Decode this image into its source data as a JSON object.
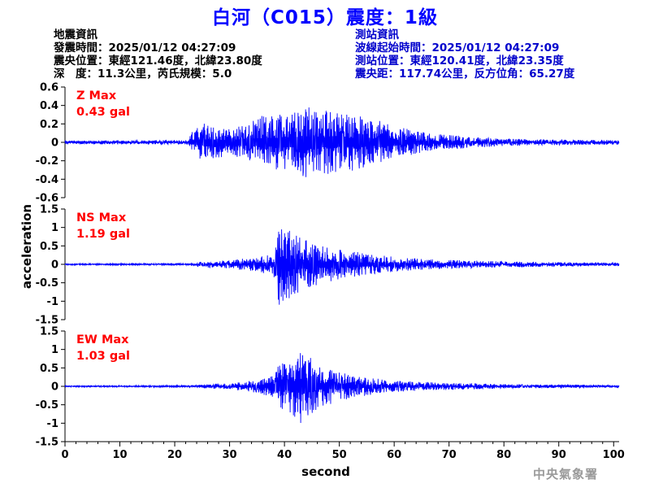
{
  "colors": {
    "title": "#0000ff",
    "trace": "#0000ff",
    "max_label": "#ff0000",
    "station_info": "#0000cc"
  },
  "title": "白河（C015）震度：1級",
  "event_info": {
    "heading": "地震資訊",
    "origin_time": "發震時間：2025/01/12 04:27:09",
    "epicenter": "震央位置：東經121.46度，北緯23.80度",
    "depth_magnitude": "深　度：11.3公里，芮氏規模：5.0"
  },
  "station_info": {
    "heading": "測站資訊",
    "waveform_start": "波線起始時間：2025/01/12 04:27:09",
    "location": "測站位置：東經120.41度，北緯23.35度",
    "distance_azimuth": "震央距：117.74公里，反方位角：65.27度"
  },
  "agency": "中央氣象署",
  "chart_data": {
    "type": "line",
    "xlabel": "second",
    "ylabel": "acceleration",
    "xlim": [
      0,
      101
    ],
    "xticks": [
      0,
      10,
      20,
      30,
      40,
      50,
      60,
      70,
      80,
      90,
      100
    ],
    "panels": [
      {
        "name": "Z",
        "max_label": "Z Max",
        "max_value": "0.43 gal",
        "ylim": [
          -0.6,
          0.6
        ],
        "yticks": [
          -0.6,
          -0.4,
          -0.2,
          0,
          0.2,
          0.4,
          0.6
        ],
        "envelope": [
          [
            0,
            0.02
          ],
          [
            22.5,
            0.025
          ],
          [
            23,
            0.12
          ],
          [
            25,
            0.22
          ],
          [
            27,
            0.18
          ],
          [
            30,
            0.15
          ],
          [
            33,
            0.2
          ],
          [
            36,
            0.3
          ],
          [
            40,
            0.3
          ],
          [
            44,
            0.43
          ],
          [
            47,
            0.35
          ],
          [
            50,
            0.33
          ],
          [
            54,
            0.3
          ],
          [
            58,
            0.22
          ],
          [
            62,
            0.15
          ],
          [
            66,
            0.1
          ],
          [
            72,
            0.07
          ],
          [
            80,
            0.04
          ],
          [
            90,
            0.03
          ],
          [
            101,
            0.025
          ]
        ]
      },
      {
        "name": "NS",
        "max_label": "NS Max",
        "max_value": "1.19 gal",
        "ylim": [
          -1.5,
          1.5
        ],
        "yticks": [
          -1.5,
          -1,
          -0.5,
          0,
          0.5,
          1,
          1.5
        ],
        "envelope": [
          [
            0,
            0.02
          ],
          [
            22.5,
            0.025
          ],
          [
            25,
            0.08
          ],
          [
            30,
            0.12
          ],
          [
            35,
            0.2
          ],
          [
            38,
            0.3
          ],
          [
            39,
            1.19
          ],
          [
            41,
            0.9
          ],
          [
            43,
            0.75
          ],
          [
            46,
            0.55
          ],
          [
            50,
            0.4
          ],
          [
            55,
            0.3
          ],
          [
            60,
            0.2
          ],
          [
            65,
            0.15
          ],
          [
            70,
            0.12
          ],
          [
            80,
            0.08
          ],
          [
            90,
            0.06
          ],
          [
            101,
            0.05
          ]
        ]
      },
      {
        "name": "EW",
        "max_label": "EW Max",
        "max_value": "1.03 gal",
        "ylim": [
          -1.5,
          1.5
        ],
        "yticks": [
          -1.5,
          -1,
          -0.5,
          0,
          0.5,
          1,
          1.5
        ],
        "envelope": [
          [
            0,
            0.02
          ],
          [
            22.5,
            0.025
          ],
          [
            25,
            0.05
          ],
          [
            30,
            0.08
          ],
          [
            35,
            0.18
          ],
          [
            38,
            0.3
          ],
          [
            39,
            0.6
          ],
          [
            41,
            0.7
          ],
          [
            43,
            1.03
          ],
          [
            46,
            0.6
          ],
          [
            50,
            0.4
          ],
          [
            55,
            0.25
          ],
          [
            60,
            0.15
          ],
          [
            65,
            0.12
          ],
          [
            70,
            0.1
          ],
          [
            80,
            0.06
          ],
          [
            90,
            0.05
          ],
          [
            101,
            0.04
          ]
        ]
      }
    ]
  }
}
